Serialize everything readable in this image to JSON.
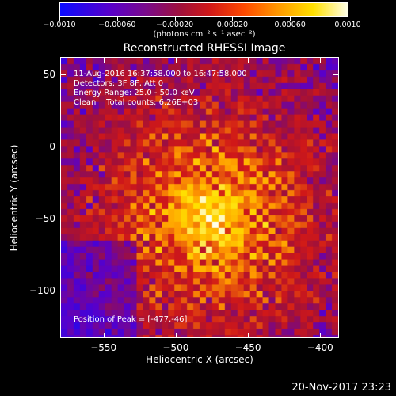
{
  "colorbar": {
    "tick_labels": [
      "−0.0010",
      "−0.00060",
      "−0.00020",
      "0.00020",
      "0.00060",
      "0.0010"
    ],
    "units": "(photons cm⁻² s⁻¹ asec⁻²)",
    "range": [
      -0.001,
      0.001
    ]
  },
  "title": "Reconstructed RHESSI Image",
  "info": {
    "time_range": "11-Aug-2016 16:37:58.000 to 16:47:58.000",
    "detectors": "Detectors: 3F 8F, Att 0",
    "energy": "Energy Range: 25.0 - 50.0 keV",
    "clean": "Clean    Total counts: 6.26E+03",
    "peak": "Position of Peak = [-477,-46]"
  },
  "chart_data": {
    "type": "heatmap",
    "title": "Reconstructed RHESSI Image",
    "xlabel": "Heliocentric X (arcsec)",
    "ylabel": "Heliocentric Y (arcsec)",
    "x_ticks": [
      "−550",
      "−500",
      "−450",
      "−400"
    ],
    "y_ticks": [
      "50",
      "0",
      "−50",
      "−100"
    ],
    "x_tick_values": [
      -550,
      -500,
      -450,
      -400
    ],
    "y_tick_values": [
      50,
      0,
      -50,
      -100
    ],
    "xlim": [
      -580,
      -387
    ],
    "ylim": [
      -133,
      62
    ],
    "peak_position": [
      -477,
      -46
    ],
    "colormap": [
      "#0b0bff",
      "#5a00c8",
      "#a0103a",
      "#d01818",
      "#ff9a00",
      "#ffe000",
      "#ffffe8"
    ]
  },
  "footer": {
    "timestamp": "20-Nov-2017 23:23"
  }
}
